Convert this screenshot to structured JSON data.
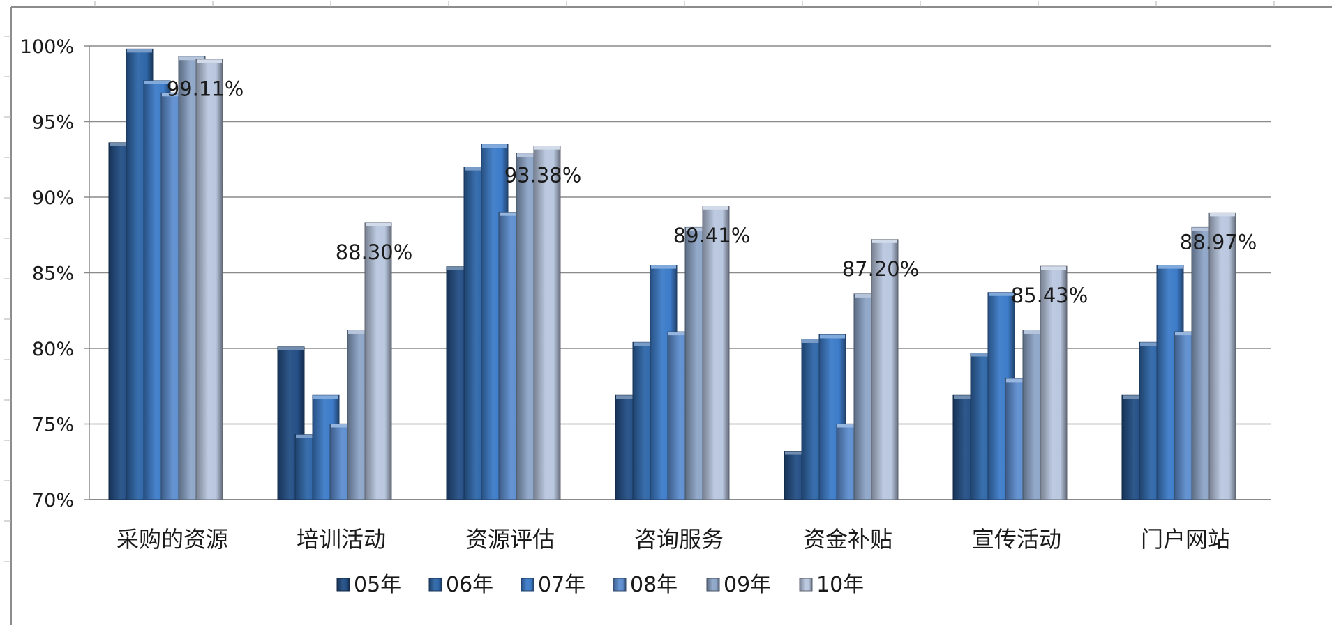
{
  "chart_data": {
    "type": "bar",
    "categories": [
      "采购的资源",
      "培训活动",
      "资源评估",
      "咨询服务",
      "资金补贴",
      "宣传活动",
      "门户网站"
    ],
    "series": [
      {
        "name": "05年",
        "color": "#244f86",
        "values": [
          93.6,
          80.1,
          85.4,
          76.9,
          73.2,
          76.9,
          76.9
        ]
      },
      {
        "name": "06年",
        "color": "#2f67a9",
        "values": [
          99.8,
          74.3,
          92.0,
          80.4,
          80.6,
          79.7,
          80.4
        ]
      },
      {
        "name": "07年",
        "color": "#3d7cc9",
        "values": [
          97.7,
          76.9,
          93.5,
          85.5,
          80.9,
          83.7,
          85.5
        ]
      },
      {
        "name": "08年",
        "color": "#5e8ed0",
        "values": [
          96.9,
          75.0,
          89.0,
          81.1,
          75.0,
          78.0,
          81.1
        ]
      },
      {
        "name": "09年",
        "color": "#8ea6c8",
        "values": [
          99.3,
          81.2,
          92.9,
          88.0,
          83.6,
          81.2,
          88.0
        ]
      },
      {
        "name": "10年",
        "color": "#b9c7df",
        "values": [
          99.11,
          88.3,
          93.38,
          89.41,
          87.2,
          85.43,
          88.97
        ]
      }
    ],
    "data_labels": [
      "99.11%",
      "88.30%",
      "93.38%",
      "89.41%",
      "87.20%",
      "85.43%",
      "88.97%"
    ],
    "ylim": [
      70,
      100
    ],
    "y_ticks": [
      "70%",
      "75%",
      "80%",
      "85%",
      "90%",
      "95%",
      "100%"
    ],
    "y_tick_values": [
      70,
      75,
      80,
      85,
      90,
      95,
      100
    ],
    "grid": true,
    "legend_position": "bottom",
    "title": "",
    "xlabel": "",
    "ylabel": ""
  }
}
